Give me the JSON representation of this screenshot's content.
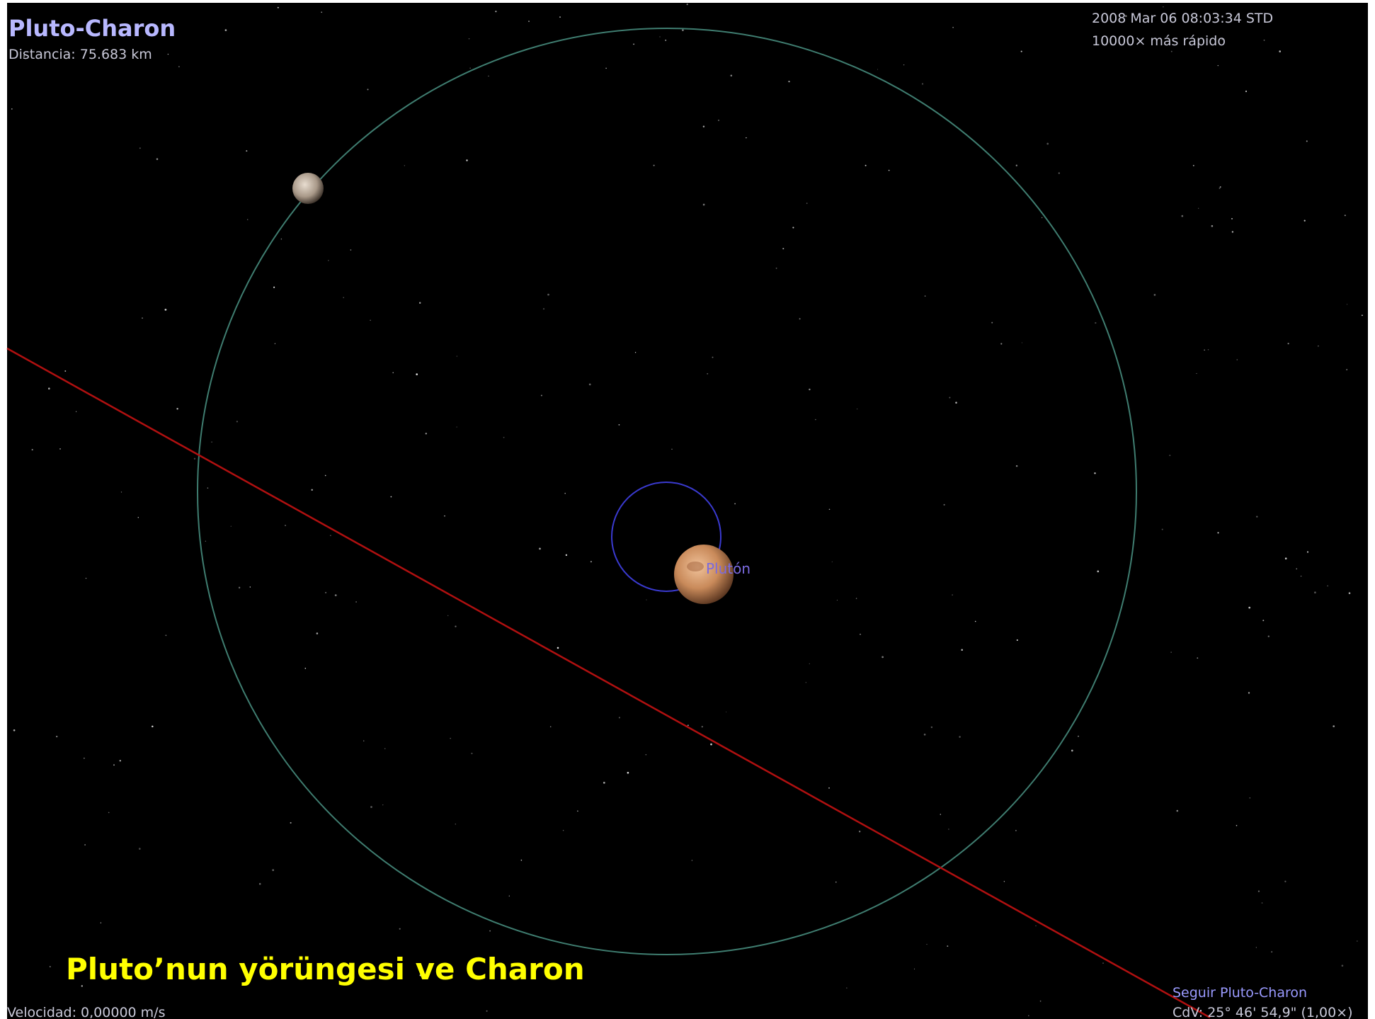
{
  "header": {
    "title": "Pluto-Charon",
    "distance": "Distancia: 75.683 km"
  },
  "status": {
    "datetime": "2008 Mar 06 08:03:34 STD",
    "speed": "10000× más rápido"
  },
  "labels": {
    "pluto": "Plutón"
  },
  "caption": "Pluto’nun yörüngesi ve Charon",
  "footer": {
    "velocity": "Velocidad: 0,00000 m/s",
    "follow": "Seguir Pluto-Charon",
    "fov": "CdV: 25° 46' 54,9\" (1,00×)"
  }
}
